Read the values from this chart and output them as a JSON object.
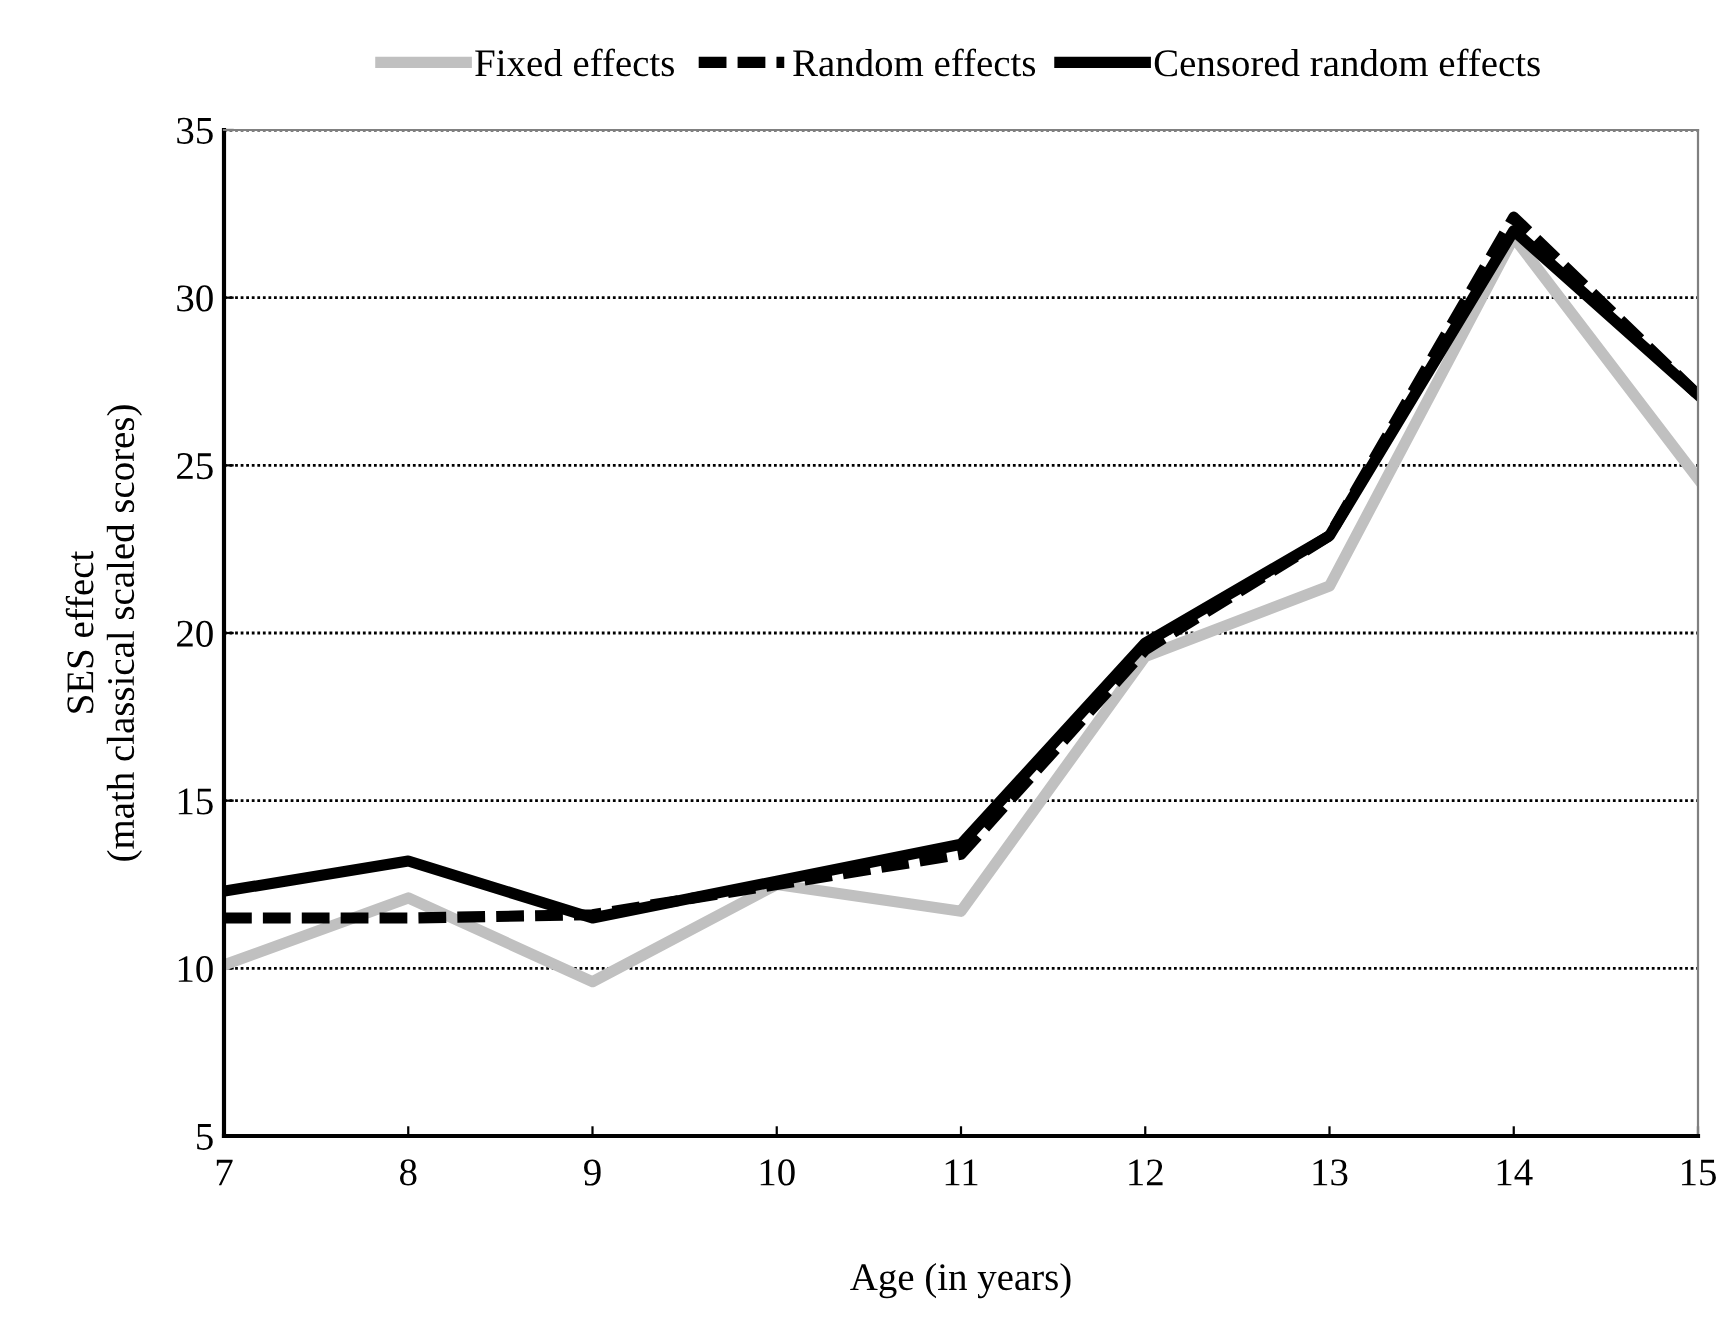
{
  "chart_data": {
    "type": "line",
    "xlabel": "Age (in years)",
    "ylabel": "SES effect\n(math classical scaled scores)",
    "x": [
      7,
      8,
      9,
      10,
      11,
      12,
      13,
      14,
      15
    ],
    "series": [
      {
        "name": "Fixed effects",
        "color": "#c0c0c0",
        "line_style": "solid",
        "values": [
          10.1,
          12.1,
          9.6,
          12.5,
          11.7,
          19.3,
          21.4,
          31.8,
          24.6
        ]
      },
      {
        "name": "Random effects",
        "color": "#000000",
        "line_style": "dashed",
        "values": [
          11.5,
          11.5,
          11.6,
          12.5,
          13.4,
          19.5,
          22.9,
          32.4,
          27.1
        ]
      },
      {
        "name": "Censored random effects",
        "color": "#000000",
        "line_style": "solid",
        "values": [
          12.3,
          13.2,
          11.5,
          12.6,
          13.7,
          19.7,
          22.9,
          32.0,
          27.1
        ]
      }
    ],
    "xlim": [
      7,
      15
    ],
    "xticks": [
      7,
      8,
      9,
      10,
      11,
      12,
      13,
      14,
      15
    ],
    "ylim": [
      5,
      35
    ],
    "yticks": [
      5,
      10,
      15,
      20,
      25,
      30,
      35
    ],
    "grid": "y",
    "legend": "top",
    "marker": "none"
  }
}
